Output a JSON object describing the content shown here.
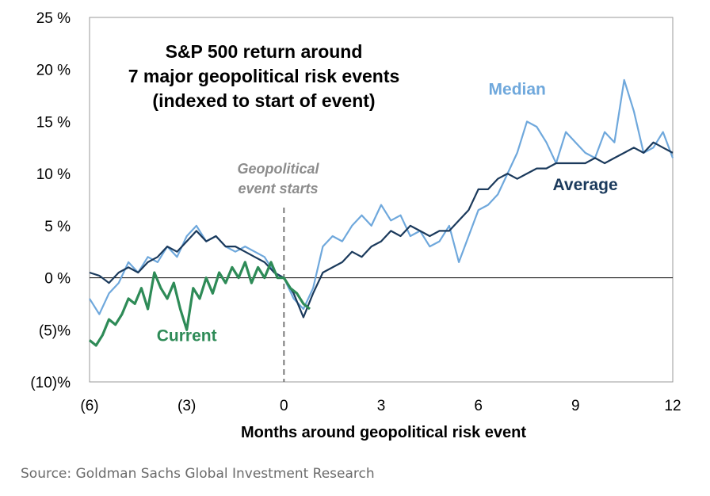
{
  "source": "Source: Goldman Sachs Global Investment Research",
  "chart_data": {
    "type": "line",
    "title": [
      "S&P 500 return around",
      "7 major geopolitical risk events",
      "(indexed to start of event)"
    ],
    "xlabel": "Months around geopolitical risk event",
    "ylabel": "",
    "xlim": [
      -6,
      12
    ],
    "ylim": [
      -10,
      25
    ],
    "x_ticks": [
      -6,
      -3,
      0,
      3,
      6,
      9,
      12
    ],
    "x_tick_labels": [
      "(6)",
      "(3)",
      "0",
      "3",
      "6",
      "9",
      "12"
    ],
    "y_ticks": [
      -10,
      -5,
      0,
      5,
      10,
      15,
      20,
      25
    ],
    "y_tick_labels": [
      "(10)%",
      "(5)%",
      "0 %",
      "5 %",
      "10 %",
      "15 %",
      "20 %",
      "25 %"
    ],
    "annotations": [
      {
        "text": [
          "Geopolitical",
          "event starts"
        ],
        "x": 0,
        "y": 10.5,
        "style": "gray-italic"
      }
    ],
    "event_line_x": 0,
    "series": [
      {
        "name": "Median",
        "color": "#6fa8dc",
        "label_x": 7.2,
        "label_y": 17.6,
        "x": [
          -6,
          -5.7,
          -5.4,
          -5.1,
          -4.8,
          -4.5,
          -4.2,
          -3.9,
          -3.6,
          -3.3,
          -3,
          -2.7,
          -2.4,
          -2.1,
          -1.8,
          -1.5,
          -1.2,
          -0.9,
          -0.6,
          -0.3,
          0,
          0.3,
          0.6,
          0.9,
          1.2,
          1.5,
          1.8,
          2.1,
          2.4,
          2.7,
          3,
          3.3,
          3.6,
          3.9,
          4.2,
          4.5,
          4.8,
          5.1,
          5.4,
          5.7,
          6,
          6.3,
          6.6,
          6.9,
          7.2,
          7.5,
          7.8,
          8.1,
          8.4,
          8.7,
          9,
          9.3,
          9.6,
          9.9,
          10.2,
          10.5,
          10.8,
          11.1,
          11.4,
          11.7,
          12
        ],
        "values": [
          -2,
          -3.5,
          -1.5,
          -0.5,
          1.5,
          0.5,
          2,
          1.5,
          3,
          2,
          4,
          5,
          3.5,
          4,
          3,
          2.5,
          3,
          2.5,
          2,
          0.5,
          0,
          -2,
          -3,
          -1,
          3,
          4,
          3.5,
          5,
          6,
          5,
          7,
          5.5,
          6,
          4,
          4.5,
          3,
          3.5,
          5,
          1.5,
          4,
          6.5,
          7,
          8,
          10,
          12,
          15,
          14.5,
          13,
          11,
          14,
          13,
          12,
          11.5,
          14,
          13,
          19,
          16,
          12,
          12.5,
          14,
          11.5
        ]
      },
      {
        "name": "Average",
        "color": "#1b3a5c",
        "label_x": 9.3,
        "label_y": 8.4,
        "x": [
          -6,
          -5.7,
          -5.4,
          -5.1,
          -4.8,
          -4.5,
          -4.2,
          -3.9,
          -3.6,
          -3.3,
          -3,
          -2.7,
          -2.4,
          -2.1,
          -1.8,
          -1.5,
          -1.2,
          -0.9,
          -0.6,
          -0.3,
          0,
          0.3,
          0.6,
          0.9,
          1.2,
          1.5,
          1.8,
          2.1,
          2.4,
          2.7,
          3,
          3.3,
          3.6,
          3.9,
          4.2,
          4.5,
          4.8,
          5.1,
          5.4,
          5.7,
          6,
          6.3,
          6.6,
          6.9,
          7.2,
          7.5,
          7.8,
          8.1,
          8.4,
          8.7,
          9,
          9.3,
          9.6,
          9.9,
          10.2,
          10.5,
          10.8,
          11.1,
          11.4,
          11.7,
          12
        ],
        "values": [
          0.5,
          0.2,
          -0.5,
          0.5,
          1,
          0.5,
          1.5,
          2,
          3,
          2.5,
          3.5,
          4.5,
          3.5,
          4,
          3,
          3,
          2.5,
          2,
          1.5,
          0.5,
          0,
          -1.5,
          -3.8,
          -1.5,
          0.5,
          1,
          1.5,
          2.5,
          2,
          3,
          3.5,
          4.5,
          4,
          5,
          4.5,
          4,
          4.5,
          4.5,
          5.5,
          6.5,
          8.5,
          8.5,
          9.5,
          10,
          9.5,
          10,
          10.5,
          10.5,
          11,
          11,
          11,
          11,
          11.5,
          11,
          11.5,
          12,
          12.5,
          12,
          13,
          12.5,
          12
        ]
      },
      {
        "name": "Current",
        "color": "#2e8b57",
        "label_x": -3.0,
        "label_y": -6.1,
        "x": [
          -6,
          -5.8,
          -5.6,
          -5.4,
          -5.2,
          -5,
          -4.8,
          -4.6,
          -4.4,
          -4.2,
          -4,
          -3.8,
          -3.6,
          -3.4,
          -3.2,
          -3,
          -2.8,
          -2.6,
          -2.4,
          -2.2,
          -2,
          -1.8,
          -1.6,
          -1.4,
          -1.2,
          -1,
          -0.8,
          -0.6,
          -0.4,
          -0.2,
          0,
          0.2,
          0.4,
          0.6,
          0.8
        ],
        "values": [
          -6,
          -6.5,
          -5.5,
          -4,
          -4.5,
          -3.5,
          -2,
          -2.5,
          -1,
          -3,
          0.5,
          -1,
          -2,
          -0.5,
          -3,
          -5,
          -1,
          -2,
          0,
          -1.5,
          0.5,
          -0.5,
          1,
          0,
          1.5,
          -0.5,
          1,
          0,
          1.5,
          0,
          0,
          -1,
          -1.5,
          -2.5,
          -3
        ]
      }
    ]
  }
}
